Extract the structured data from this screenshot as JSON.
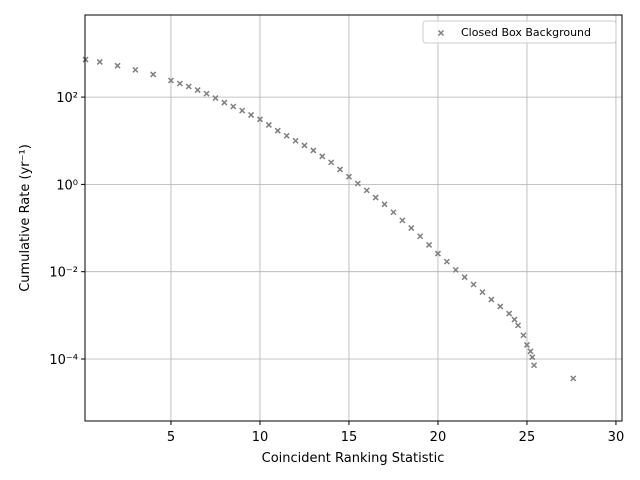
{
  "chart_data": {
    "type": "scatter",
    "x_label": "Coincident Ranking Statistic",
    "y_label": "Cumulative Rate (yr⁻¹)",
    "log_y": true,
    "grid": true,
    "legend_position": "upper-right",
    "xlim": [
      0.17,
      30.34
    ],
    "ylim": [
      3.8e-06,
      7600
    ],
    "xticks": [
      5,
      10,
      15,
      20,
      25,
      30
    ],
    "yticks": [
      {
        "value": 0.0001,
        "label": "10⁻⁴"
      },
      {
        "value": 0.01,
        "label": "10⁻²"
      },
      {
        "value": 1,
        "label": "10⁰"
      },
      {
        "value": 100,
        "label": "10²"
      }
    ],
    "series": [
      {
        "name": "Closed Box Background",
        "color": "#7f7f7f",
        "x": [
          0.2,
          1,
          2,
          3,
          4,
          5,
          5.5,
          6,
          6.5,
          7,
          7.5,
          8,
          8.5,
          9,
          9.5,
          10,
          10.5,
          11,
          11.5,
          12,
          12.5,
          13,
          13.5,
          14,
          14.5,
          15,
          15.5,
          16,
          16.5,
          17,
          17.5,
          18,
          18.5,
          19,
          19.5,
          20,
          20.5,
          21,
          21.5,
          22,
          22.5,
          23,
          23.5,
          24,
          24.3,
          24.5,
          24.8,
          25,
          25.2,
          25.3,
          25.4,
          27.6
        ],
        "values": [
          725,
          640,
          525,
          420,
          330,
          240,
          205,
          175,
          145,
          120,
          95,
          75,
          61,
          49,
          39,
          31,
          23,
          17,
          13,
          10,
          7.8,
          6,
          4.4,
          3.2,
          2.2,
          1.5,
          1.05,
          0.73,
          0.5,
          0.35,
          0.23,
          0.15,
          0.1,
          0.065,
          0.041,
          0.026,
          0.017,
          0.011,
          0.0075,
          0.0051,
          0.0034,
          0.0023,
          0.0016,
          0.0011,
          0.0008,
          0.00059,
          0.00035,
          0.00021,
          0.00015,
          0.00011,
          7.2e-05,
          3.6e-05
        ]
      }
    ]
  }
}
